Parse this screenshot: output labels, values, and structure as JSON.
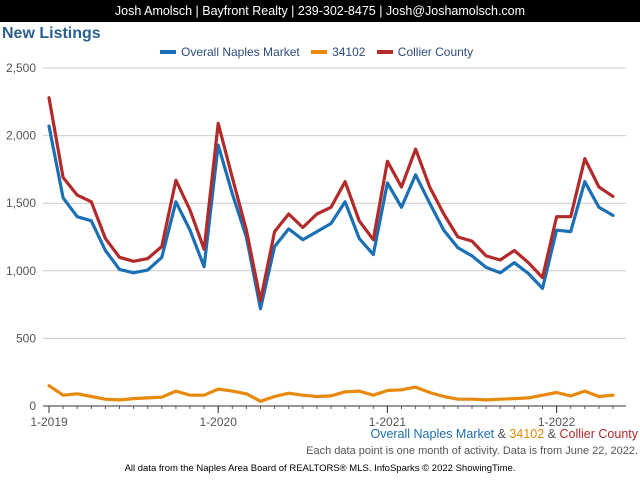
{
  "header": {
    "text": "Josh Amolsch | Bayfront Realty | 239-302-8475 | Josh@Joshamolsch.com"
  },
  "footer": {
    "legend_parts": [
      {
        "text": "Overall Naples Market",
        "color": "#1a6fb5"
      },
      {
        "text": " & ",
        "color": "#555555"
      },
      {
        "text": "34102",
        "color": "#e8890c"
      },
      {
        "text": " & ",
        "color": "#555555"
      },
      {
        "text": "Collier County",
        "color": "#b22a2a"
      }
    ],
    "note": "Each data point is one month of activity. Data is from June 22, 2022.",
    "source": "All data from the Naples Area Board of REALTORS® MLS. InfoSparks © 2022 ShowingTime."
  },
  "chart_data": {
    "type": "line",
    "title": "New Listings",
    "x": [
      "2019-01",
      "2019-02",
      "2019-03",
      "2019-04",
      "2019-05",
      "2019-06",
      "2019-07",
      "2019-08",
      "2019-09",
      "2019-10",
      "2019-11",
      "2019-12",
      "2020-01",
      "2020-02",
      "2020-03",
      "2020-04",
      "2020-05",
      "2020-06",
      "2020-07",
      "2020-08",
      "2020-09",
      "2020-10",
      "2020-11",
      "2020-12",
      "2021-01",
      "2021-02",
      "2021-03",
      "2021-04",
      "2021-05",
      "2021-06",
      "2021-07",
      "2021-08",
      "2021-09",
      "2021-10",
      "2021-11",
      "2021-12",
      "2022-01",
      "2022-02",
      "2022-03",
      "2022-04",
      "2022-05"
    ],
    "xtick_labels": [
      {
        "label": "1-2019",
        "index": 0
      },
      {
        "label": "1-2020",
        "index": 12
      },
      {
        "label": "1-2021",
        "index": 24
      },
      {
        "label": "1-2022",
        "index": 36
      }
    ],
    "ylim": [
      0,
      2500
    ],
    "yticks": [
      0,
      500,
      1000,
      1500,
      2000,
      2500
    ],
    "ytick_labels": [
      "0",
      "500",
      "1,000",
      "1,500",
      "2,000",
      "2,500"
    ],
    "grid": true,
    "legend_position": "top",
    "series": [
      {
        "name": "Overall Naples Market",
        "color": "#1a6fb5",
        "values": [
          2070,
          1540,
          1400,
          1370,
          1150,
          1010,
          985,
          1005,
          1100,
          1510,
          1300,
          1030,
          1930,
          1570,
          1250,
          720,
          1180,
          1310,
          1230,
          1290,
          1350,
          1510,
          1240,
          1120,
          1650,
          1470,
          1710,
          1500,
          1300,
          1170,
          1110,
          1025,
          985,
          1060,
          980,
          870,
          1300,
          1290,
          1660,
          1470,
          1410
        ]
      },
      {
        "name": "34102",
        "color": "#e8890c",
        "values": [
          150,
          80,
          90,
          70,
          50,
          45,
          55,
          60,
          65,
          110,
          80,
          80,
          125,
          110,
          90,
          35,
          70,
          95,
          80,
          70,
          75,
          105,
          110,
          80,
          115,
          120,
          140,
          100,
          70,
          50,
          50,
          45,
          50,
          55,
          60,
          80,
          100,
          75,
          110,
          70,
          80
        ]
      },
      {
        "name": "Collier County",
        "color": "#b22a2a",
        "values": [
          2280,
          1690,
          1560,
          1510,
          1240,
          1100,
          1070,
          1090,
          1180,
          1670,
          1450,
          1160,
          2090,
          1690,
          1300,
          780,
          1290,
          1420,
          1320,
          1420,
          1470,
          1660,
          1370,
          1230,
          1810,
          1620,
          1900,
          1620,
          1420,
          1250,
          1220,
          1110,
          1080,
          1150,
          1060,
          950,
          1400,
          1400,
          1830,
          1620,
          1550
        ]
      }
    ]
  }
}
